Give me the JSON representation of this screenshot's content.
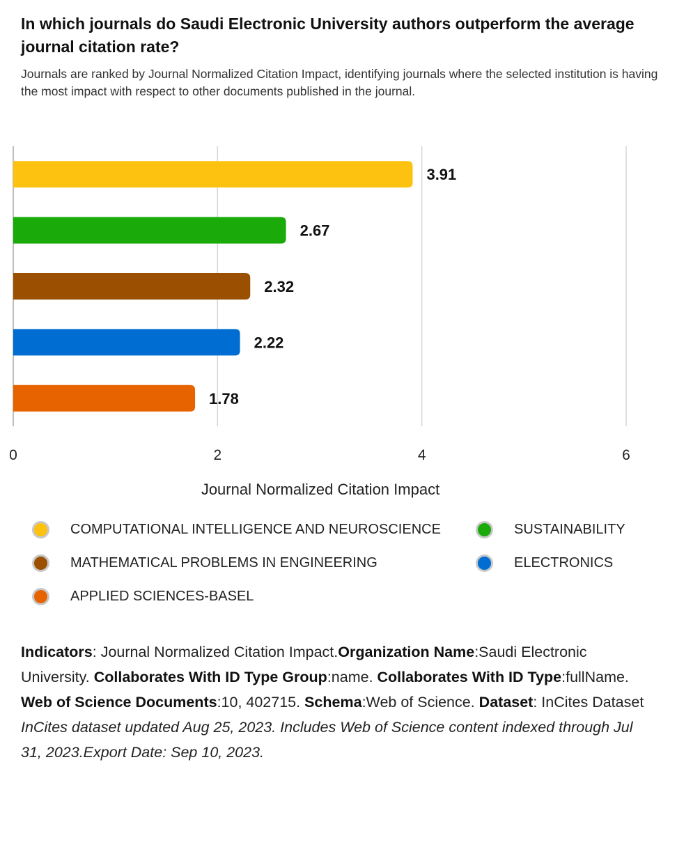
{
  "header": {
    "title": "In which journals do Saudi Electronic University authors outperform the average journal citation rate?",
    "subtitle": "Journals are ranked by Journal Normalized Citation Impact, identifying journals where the selected institution is having the most impact with respect to other documents published in the journal."
  },
  "chart_data": {
    "type": "bar",
    "orientation": "horizontal",
    "title": "In which journals do Saudi Electronic University authors outperform the average journal citation rate?",
    "xlabel": "Journal Normalized Citation Impact",
    "ylabel": "",
    "xlim": [
      0,
      6
    ],
    "xticks": [
      0,
      2,
      4,
      6
    ],
    "grid": true,
    "legend_position": "bottom",
    "categories": [
      "COMPUTATIONAL INTELLIGENCE AND NEUROSCIENCE",
      "SUSTAINABILITY",
      "MATHEMATICAL PROBLEMS IN ENGINEERING",
      "ELECTRONICS",
      "APPLIED SCIENCES-BASEL"
    ],
    "values": [
      3.91,
      2.67,
      2.32,
      2.22,
      1.78
    ],
    "data_labels": [
      "3.91",
      "2.67",
      "2.32",
      "2.22",
      "1.78"
    ],
    "colors": [
      "#FDC20F",
      "#1AAA0A",
      "#9A5000",
      "#006DD2",
      "#E66300"
    ]
  },
  "legend": {
    "items": [
      {
        "label": "COMPUTATIONAL INTELLIGENCE AND NEUROSCIENCE",
        "color": "#FDC20F"
      },
      {
        "label": "SUSTAINABILITY",
        "color": "#1AAA0A"
      },
      {
        "label": "MATHEMATICAL PROBLEMS IN ENGINEERING",
        "color": "#9A5000"
      },
      {
        "label": "ELECTRONICS",
        "color": "#006DD2"
      },
      {
        "label": "APPLIED SCIENCES-BASEL",
        "color": "#E66300"
      }
    ]
  },
  "footer": {
    "indicators_label": "Indicators",
    "indicators_value": ": Journal Normalized Citation Impact.",
    "org_label": "Organization Name",
    "org_value": ":Saudi Electronic University. ",
    "collab_group_label": "Collaborates With ID Type Group",
    "collab_group_value": ":name. ",
    "collab_type_label": "Collaborates With ID Type",
    "collab_type_value": ":fullName. ",
    "wos_docs_label": "Web of Science Documents",
    "wos_docs_value": ":10, 402715. ",
    "schema_label": "Schema",
    "schema_value": ":Web of Science. ",
    "dataset_label": "Dataset",
    "dataset_value": ": InCites Dataset",
    "note": "InCites dataset updated Aug 25, 2023. Includes Web of Science content indexed through Jul 31, 2023.Export Date: Sep 10, 2023."
  }
}
